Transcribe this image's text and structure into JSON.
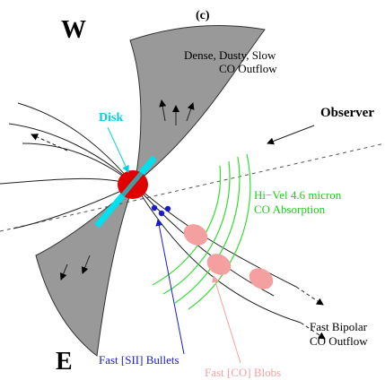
{
  "labels": {
    "west": "W",
    "panel": "(c)",
    "dense_outflow": [
      "Dense, Dusty, Slow",
      "CO Outflow"
    ],
    "observer": "Observer",
    "disk": "Disk",
    "absorption": [
      "Hi−Vel 4.6 micron",
      "CO Absorption"
    ],
    "bipolar_outflow": [
      "Fast Bipolar",
      "CO Outflow"
    ],
    "east": "E",
    "bullets": "Fast [SII] Bullets",
    "blobs": "Fast [CO] Blobs"
  }
}
